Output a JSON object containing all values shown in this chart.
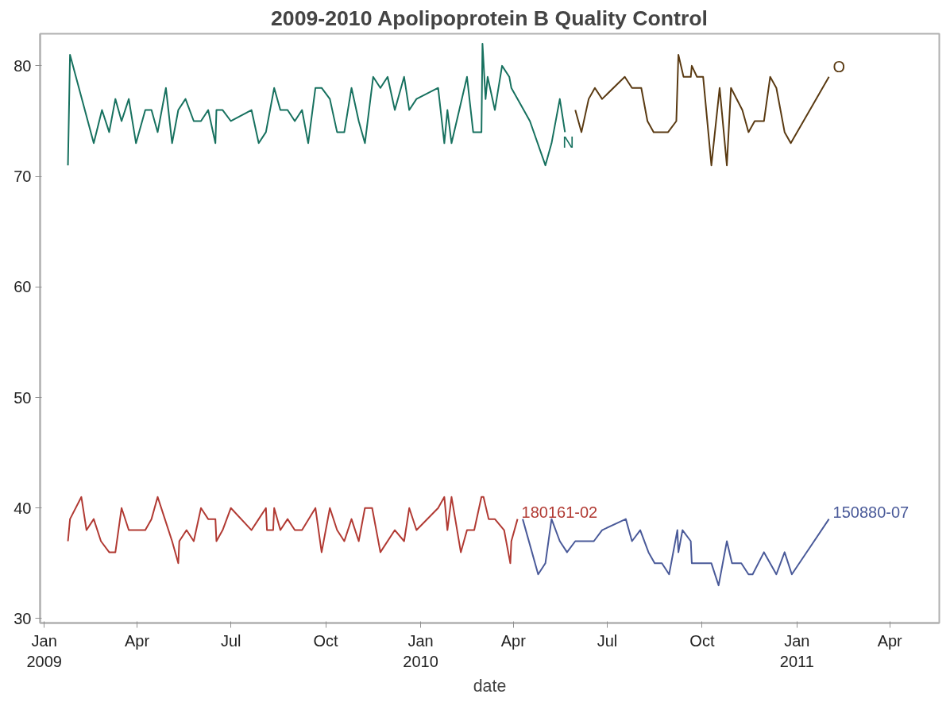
{
  "chart_data": {
    "type": "line",
    "title": "2009-2010 Apolipoprotein B Quality Control",
    "xlabel": "date",
    "xlim": [
      "2008-12-28",
      "2011-05-19"
    ],
    "xticks": [
      {
        "value": "2009-01-01",
        "label": "Jan\n2009"
      },
      {
        "value": "2009-04-01",
        "label": "Apr"
      },
      {
        "value": "2009-07-01",
        "label": "Jul"
      },
      {
        "value": "2009-10-01",
        "label": "Oct"
      },
      {
        "value": "2010-01-01",
        "label": "Jan\n2010"
      },
      {
        "value": "2010-04-01",
        "label": "Apr"
      },
      {
        "value": "2010-07-01",
        "label": "Jul"
      },
      {
        "value": "2010-10-01",
        "label": "Oct"
      },
      {
        "value": "2011-01-01",
        "label": "Jan\n2011"
      },
      {
        "value": "2011-04-01",
        "label": "Apr"
      }
    ],
    "ylim": [
      29.6,
      82.9
    ],
    "yticks": [
      30,
      40,
      50,
      60,
      70,
      80
    ],
    "grid": false,
    "series": [
      {
        "name": "N",
        "color": "#17715f",
        "x": [
          "2009-01-24",
          "2009-01-26",
          "2009-02-18",
          "2009-02-26",
          "2009-03-05",
          "2009-03-11",
          "2009-03-17",
          "2009-03-24",
          "2009-03-31",
          "2009-04-09",
          "2009-04-15",
          "2009-04-21",
          "2009-04-29",
          "2009-05-05",
          "2009-05-11",
          "2009-05-18",
          "2009-05-26",
          "2009-06-02",
          "2009-06-09",
          "2009-06-16",
          "2009-06-17",
          "2009-06-23",
          "2009-07-01",
          "2009-07-21",
          "2009-07-28",
          "2009-08-04",
          "2009-08-12",
          "2009-08-18",
          "2009-08-25",
          "2009-09-01",
          "2009-09-08",
          "2009-09-14",
          "2009-09-21",
          "2009-09-27",
          "2009-10-05",
          "2009-10-12",
          "2009-10-19",
          "2009-10-26",
          "2009-11-02",
          "2009-11-08",
          "2009-11-16",
          "2009-11-23",
          "2009-11-30",
          "2009-12-07",
          "2009-12-16",
          "2009-12-21",
          "2009-12-28",
          "2010-01-18",
          "2010-01-24",
          "2010-01-27",
          "2010-01-31",
          "2010-02-15",
          "2010-02-21",
          "2010-03-01",
          "2010-03-02",
          "2010-03-05",
          "2010-03-07",
          "2010-03-14",
          "2010-03-21",
          "2010-03-28",
          "2010-03-30",
          "2010-04-11",
          "2010-04-17",
          "2010-05-02",
          "2010-05-08",
          "2010-05-16",
          "2010-05-21"
        ],
        "values": [
          71,
          81,
          73,
          76,
          74,
          77,
          75,
          77,
          73,
          76,
          76,
          74,
          78,
          73,
          76,
          77,
          75,
          75,
          76,
          73,
          76,
          76,
          75,
          76,
          73,
          74,
          78,
          76,
          76,
          75,
          76,
          73,
          78,
          78,
          77,
          74,
          74,
          78,
          75,
          73,
          79,
          78,
          79,
          76,
          79,
          76,
          77,
          78,
          73,
          76,
          73,
          79,
          74,
          74,
          82,
          77,
          79,
          76,
          80,
          79,
          78,
          76,
          75,
          71,
          73,
          77,
          74
        ]
      },
      {
        "name": "O",
        "color": "#5a3a12",
        "x": [
          "2010-05-31",
          "2010-06-06",
          "2010-06-13",
          "2010-06-19",
          "2010-06-26",
          "2010-07-18",
          "2010-07-25",
          "2010-08-03",
          "2010-08-09",
          "2010-08-15",
          "2010-08-29",
          "2010-09-06",
          "2010-09-08",
          "2010-09-13",
          "2010-09-20",
          "2010-09-21",
          "2010-09-26",
          "2010-10-02",
          "2010-10-10",
          "2010-10-18",
          "2010-10-25",
          "2010-10-29",
          "2010-11-09",
          "2010-11-15",
          "2010-11-21",
          "2010-11-30",
          "2010-12-06",
          "2010-12-12",
          "2010-12-20",
          "2010-12-26",
          "2011-02-01"
        ],
        "values": [
          76,
          74,
          77,
          78,
          77,
          79,
          78,
          78,
          75,
          74,
          74,
          75,
          81,
          79,
          79,
          80,
          79,
          79,
          71,
          78,
          71,
          78,
          76,
          74,
          75,
          75,
          79,
          78,
          74,
          73,
          79
        ]
      },
      {
        "name": "180161-02",
        "color": "#b13a33",
        "x": [
          "2009-01-24",
          "2009-01-26",
          "2009-02-06",
          "2009-02-11",
          "2009-02-18",
          "2009-02-25",
          "2009-03-05",
          "2009-03-11",
          "2009-03-17",
          "2009-03-24",
          "2009-04-09",
          "2009-04-15",
          "2009-04-21",
          "2009-04-28",
          "2009-05-05",
          "2009-05-11",
          "2009-05-12",
          "2009-05-19",
          "2009-05-26",
          "2009-06-02",
          "2009-06-09",
          "2009-06-16",
          "2009-06-17",
          "2009-06-23",
          "2009-07-01",
          "2009-07-21",
          "2009-07-28",
          "2009-08-04",
          "2009-08-05",
          "2009-08-11",
          "2009-08-12",
          "2009-08-18",
          "2009-08-25",
          "2009-09-01",
          "2009-09-08",
          "2009-09-21",
          "2009-09-27",
          "2009-10-05",
          "2009-10-12",
          "2009-10-19",
          "2009-10-26",
          "2009-11-02",
          "2009-11-08",
          "2009-11-15",
          "2009-11-23",
          "2009-12-07",
          "2009-12-16",
          "2009-12-21",
          "2009-12-28",
          "2010-01-18",
          "2010-01-24",
          "2010-01-27",
          "2010-01-31",
          "2010-02-09",
          "2010-02-15",
          "2010-02-22",
          "2010-03-01",
          "2010-03-03",
          "2010-03-08",
          "2010-03-14",
          "2010-03-23",
          "2010-03-29",
          "2010-03-30",
          "2010-04-05"
        ],
        "values": [
          37,
          39,
          41,
          38,
          39,
          37,
          36,
          36,
          40,
          38,
          38,
          39,
          41,
          39,
          37,
          35,
          37,
          38,
          37,
          40,
          39,
          39,
          37,
          38,
          40,
          38,
          39,
          40,
          38,
          38,
          40,
          38,
          39,
          38,
          38,
          40,
          36,
          40,
          38,
          37,
          39,
          37,
          40,
          40,
          36,
          38,
          37,
          40,
          38,
          40,
          41,
          38,
          41,
          36,
          38,
          38,
          41,
          41,
          39,
          39,
          38,
          35,
          37,
          39
        ]
      },
      {
        "name": "150880-07",
        "color": "#4a5a99",
        "x": [
          "2010-04-10",
          "2010-04-25",
          "2010-05-02",
          "2010-05-08",
          "2010-05-16",
          "2010-05-23",
          "2010-05-31",
          "2010-06-18",
          "2010-06-26",
          "2010-07-19",
          "2010-07-25",
          "2010-08-02",
          "2010-08-10",
          "2010-08-16",
          "2010-08-23",
          "2010-08-30",
          "2010-09-07",
          "2010-09-08",
          "2010-09-12",
          "2010-09-20",
          "2010-09-21",
          "2010-10-10",
          "2010-10-17",
          "2010-10-25",
          "2010-10-30",
          "2010-11-08",
          "2010-11-15",
          "2010-11-19",
          "2010-11-30",
          "2010-12-12",
          "2010-12-20",
          "2010-12-27",
          "2011-02-01"
        ],
        "values": [
          39,
          34,
          35,
          39,
          37,
          36,
          37,
          37,
          38,
          39,
          37,
          38,
          36,
          35,
          35,
          34,
          38,
          36,
          38,
          37,
          35,
          35,
          33,
          37,
          35,
          35,
          34,
          34,
          36,
          34,
          36,
          34,
          39
        ]
      }
    ]
  }
}
